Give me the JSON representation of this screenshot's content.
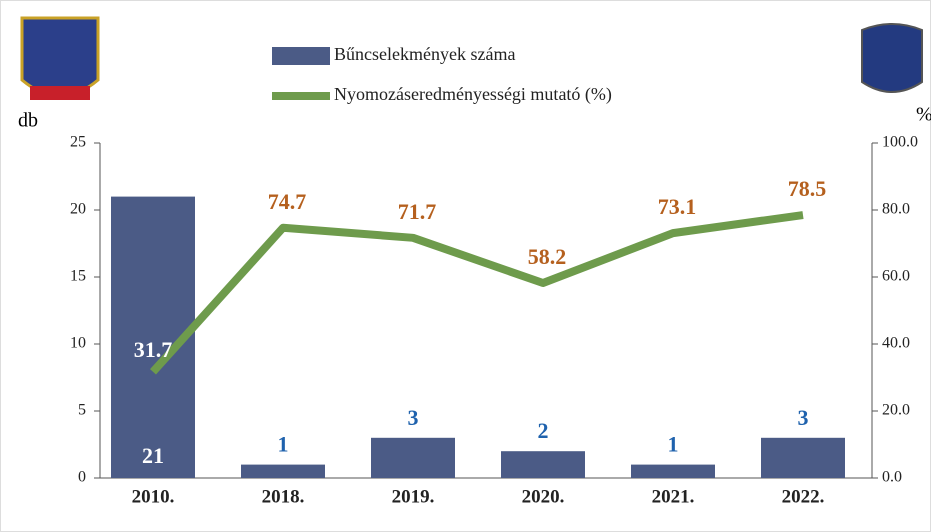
{
  "chart_data": {
    "type": "bar_line",
    "categories": [
      "2010.",
      "2018.",
      "2019.",
      "2020.",
      "2021.",
      "2022."
    ],
    "series": [
      {
        "name": "Bűncselekmények száma",
        "color": "#4b5b86",
        "values": [
          21,
          1,
          3,
          2,
          1,
          3
        ]
      },
      {
        "name": "Nyomozáseredményességi mutató (%)",
        "color": "#6e9b4c",
        "axis": "y2",
        "values": [
          31.7,
          74.7,
          71.7,
          58.2,
          73.1,
          78.5
        ]
      }
    ],
    "ylabel": "db",
    "y2label": "%",
    "ylim": [
      0,
      25
    ],
    "yticks": [
      0,
      5,
      10,
      15,
      20,
      25
    ],
    "y2lim": [
      0,
      100
    ],
    "y2ticks": [
      {
        "value": 0,
        "label": "0.0"
      },
      {
        "value": 20,
        "label": "20.0"
      },
      {
        "value": 40,
        "label": "40.0"
      },
      {
        "value": 60,
        "label": "60.0"
      },
      {
        "value": 80,
        "label": "80.0"
      },
      {
        "value": 100,
        "label": "100.0"
      }
    ],
    "legend": "top"
  }
}
